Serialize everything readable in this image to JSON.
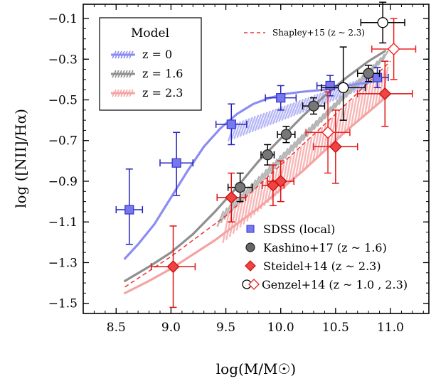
{
  "chart_data": {
    "type": "scatter",
    "xlabel": "log(M/M☉)",
    "ylabel": "log ([NII]/Hα)",
    "xlim": [
      8.2,
      11.35
    ],
    "ylim": [
      -1.55,
      -0.03
    ],
    "xticks": [
      8.5,
      9.0,
      9.5,
      10.0,
      10.5,
      11.0
    ],
    "xtick_labels": [
      "8.5",
      "9.0",
      "9.5",
      "10.0",
      "10.5",
      "11.0"
    ],
    "yticks": [
      -0.1,
      -0.3,
      -0.5,
      -0.7,
      -0.9,
      -1.1,
      -1.3,
      -1.5
    ],
    "ytick_labels": [
      "−0.1",
      "−0.3",
      "−0.5",
      "−0.7",
      "−0.9",
      "−1.1",
      "−1.3",
      "−1.5"
    ],
    "model_legend": {
      "title": "Model",
      "entries": [
        {
          "label": "z = 0",
          "color": "#8c8cf2"
        },
        {
          "label": "z = 1.6",
          "color": "#8f8f8f"
        },
        {
          "label": "z = 2.3",
          "color": "#f5a3a3"
        }
      ]
    },
    "shapley_label": "Shapley+15 (z ~ 2.3)",
    "data_legend": [
      {
        "label": "SDSS (local)",
        "marker": "square",
        "color": "#7777ee"
      },
      {
        "label": "Kashino+17 (z ~ 1.6)",
        "marker": "circle",
        "color": "#666666"
      },
      {
        "label": "Steidel+14 (z ~ 2.3)",
        "marker": "diamond",
        "color": "#ee4444"
      },
      {
        "label": "Genzel+14 (z ~ 1.0 , 2.3)",
        "marker": "open-pair"
      }
    ],
    "models": [
      {
        "name": "z = 0",
        "color": "#8c8cf2",
        "band_color": "#b7b7f7",
        "band_x": [
          9.55,
          10.8
        ],
        "band_upper": [
          -0.62,
          -0.38
        ],
        "band_lower": [
          -0.7,
          -0.44
        ],
        "x": [
          8.58,
          8.7,
          8.85,
          9.0,
          9.15,
          9.3,
          9.45,
          9.6,
          9.75,
          9.9,
          10.05,
          10.2,
          10.4,
          10.6,
          10.85
        ],
        "y": [
          -1.28,
          -1.21,
          -1.11,
          -0.98,
          -0.85,
          -0.73,
          -0.64,
          -0.57,
          -0.52,
          -0.49,
          -0.47,
          -0.46,
          -0.45,
          -0.43,
          -0.41
        ]
      },
      {
        "name": "z = 1.6",
        "color": "#8f8f8f",
        "band_color": "#b4b4b4",
        "band_x": [
          9.45,
          10.95
        ],
        "band_upper": [
          -1.05,
          -0.26
        ],
        "band_lower": [
          -1.12,
          -0.31
        ],
        "x": [
          8.58,
          8.8,
          9.0,
          9.2,
          9.4,
          9.6,
          9.8,
          10.0,
          10.2,
          10.4,
          10.6,
          10.8,
          10.95
        ],
        "y": [
          -1.39,
          -1.32,
          -1.25,
          -1.16,
          -1.05,
          -0.93,
          -0.8,
          -0.69,
          -0.58,
          -0.48,
          -0.39,
          -0.31,
          -0.26
        ]
      },
      {
        "name": "z = 2.3",
        "color": "#f5a3a3",
        "band_color": "#f7b7b7",
        "band_x": [
          9.5,
          10.95
        ],
        "band_upper": [
          -1.06,
          -0.34
        ],
        "band_lower": [
          -1.2,
          -0.5
        ],
        "x": [
          8.58,
          8.8,
          9.0,
          9.2,
          9.4,
          9.6,
          9.8,
          10.0,
          10.2,
          10.4,
          10.6,
          10.8,
          10.95
        ],
        "y": [
          -1.45,
          -1.39,
          -1.33,
          -1.26,
          -1.19,
          -1.11,
          -1.03,
          -0.94,
          -0.85,
          -0.75,
          -0.65,
          -0.56,
          -0.49
        ]
      }
    ],
    "shapley": {
      "x": [
        8.58,
        9.0,
        9.5,
        10.0,
        10.5,
        11.0
      ],
      "y": [
        -1.42,
        -1.27,
        -1.07,
        -0.82,
        -0.57,
        -0.31
      ]
    },
    "series": [
      {
        "name": "SDSS (local)",
        "marker": "square",
        "fill": "#7777ee",
        "stroke": "#3333cc",
        "errcolor": "#2222bb",
        "points": [
          {
            "x": 8.62,
            "y": -1.04,
            "xerr": 0.12,
            "yerr": [
              0.17,
              0.2
            ]
          },
          {
            "x": 9.05,
            "y": -0.81,
            "xerr": 0.15,
            "yerr": [
              0.16,
              0.15
            ]
          },
          {
            "x": 9.55,
            "y": -0.62,
            "xerr": 0.14,
            "yerr": [
              0.1,
              0.1
            ]
          },
          {
            "x": 10.0,
            "y": -0.49,
            "xerr": 0.14,
            "yerr": [
              0.06,
              0.06
            ]
          },
          {
            "x": 10.45,
            "y": -0.43,
            "xerr": 0.12,
            "yerr": [
              0.05,
              0.05
            ]
          },
          {
            "x": 10.88,
            "y": -0.39,
            "xerr": 0.1,
            "yerr": [
              0.05,
              0.05
            ]
          }
        ]
      },
      {
        "name": "Kashino+17 (z ~ 1.6)",
        "marker": "circle",
        "fill": "#777777",
        "stroke": "#222222",
        "errcolor": "#000000",
        "points": [
          {
            "x": 9.63,
            "y": -0.93,
            "xerr": 0.11,
            "yerr": [
              0.07,
              0.07
            ]
          },
          {
            "x": 9.88,
            "y": -0.77,
            "xerr": 0.06,
            "yerr": [
              0.05,
              0.05
            ]
          },
          {
            "x": 10.05,
            "y": -0.67,
            "xerr": 0.08,
            "yerr": [
              0.04,
              0.04
            ]
          },
          {
            "x": 10.3,
            "y": -0.53,
            "xerr": 0.1,
            "yerr": [
              0.04,
              0.04
            ]
          },
          {
            "x": 10.8,
            "y": -0.37,
            "xerr": 0.1,
            "yerr": [
              0.04,
              0.04
            ]
          }
        ]
      },
      {
        "name": "Steidel+14 (z ~ 2.3)",
        "marker": "diamond",
        "fill": "#ee4444",
        "stroke": "#cc1111",
        "errcolor": "#dd1111",
        "points": [
          {
            "x": 9.02,
            "y": -1.32,
            "xerr": 0.2,
            "yerr": [
              0.2,
              0.2
            ]
          },
          {
            "x": 9.55,
            "y": -0.98,
            "xerr": 0.13,
            "yerr": [
              0.12,
              0.12
            ]
          },
          {
            "x": 9.93,
            "y": -0.92,
            "xerr": 0.1,
            "yerr": [
              0.1,
              0.1
            ]
          },
          {
            "x": 10.0,
            "y": -0.9,
            "xerr": 0.12,
            "yerr": [
              0.1,
              0.1
            ]
          },
          {
            "x": 10.5,
            "y": -0.73,
            "xerr": 0.2,
            "yerr": [
              0.18,
              0.18
            ]
          },
          {
            "x": 10.95,
            "y": -0.47,
            "xerr": 0.25,
            "yerr": [
              0.16,
              0.16
            ]
          }
        ]
      },
      {
        "name": "Genzel+14 z~2.3",
        "marker": "open-diamond",
        "fill": "#ffffff",
        "stroke": "#ee2222",
        "errcolor": "#ee2222",
        "points": [
          {
            "x": 10.43,
            "y": -0.66,
            "xerr": 0.2,
            "yerr": [
              0.2,
              0.2
            ]
          },
          {
            "x": 11.03,
            "y": -0.25,
            "xerr": 0.2,
            "yerr": [
              0.15,
              0.15
            ]
          }
        ]
      },
      {
        "name": "Genzel+14 z~1.0",
        "marker": "open-circle",
        "fill": "#ffffff",
        "stroke": "#000000",
        "errcolor": "#000000",
        "points": [
          {
            "x": 10.57,
            "y": -0.44,
            "xerr": 0.2,
            "yerr": [
              0.16,
              0.2
            ]
          },
          {
            "x": 10.93,
            "y": -0.12,
            "xerr": 0.2,
            "yerr": [
              0.1,
              0.1
            ]
          }
        ]
      }
    ]
  }
}
